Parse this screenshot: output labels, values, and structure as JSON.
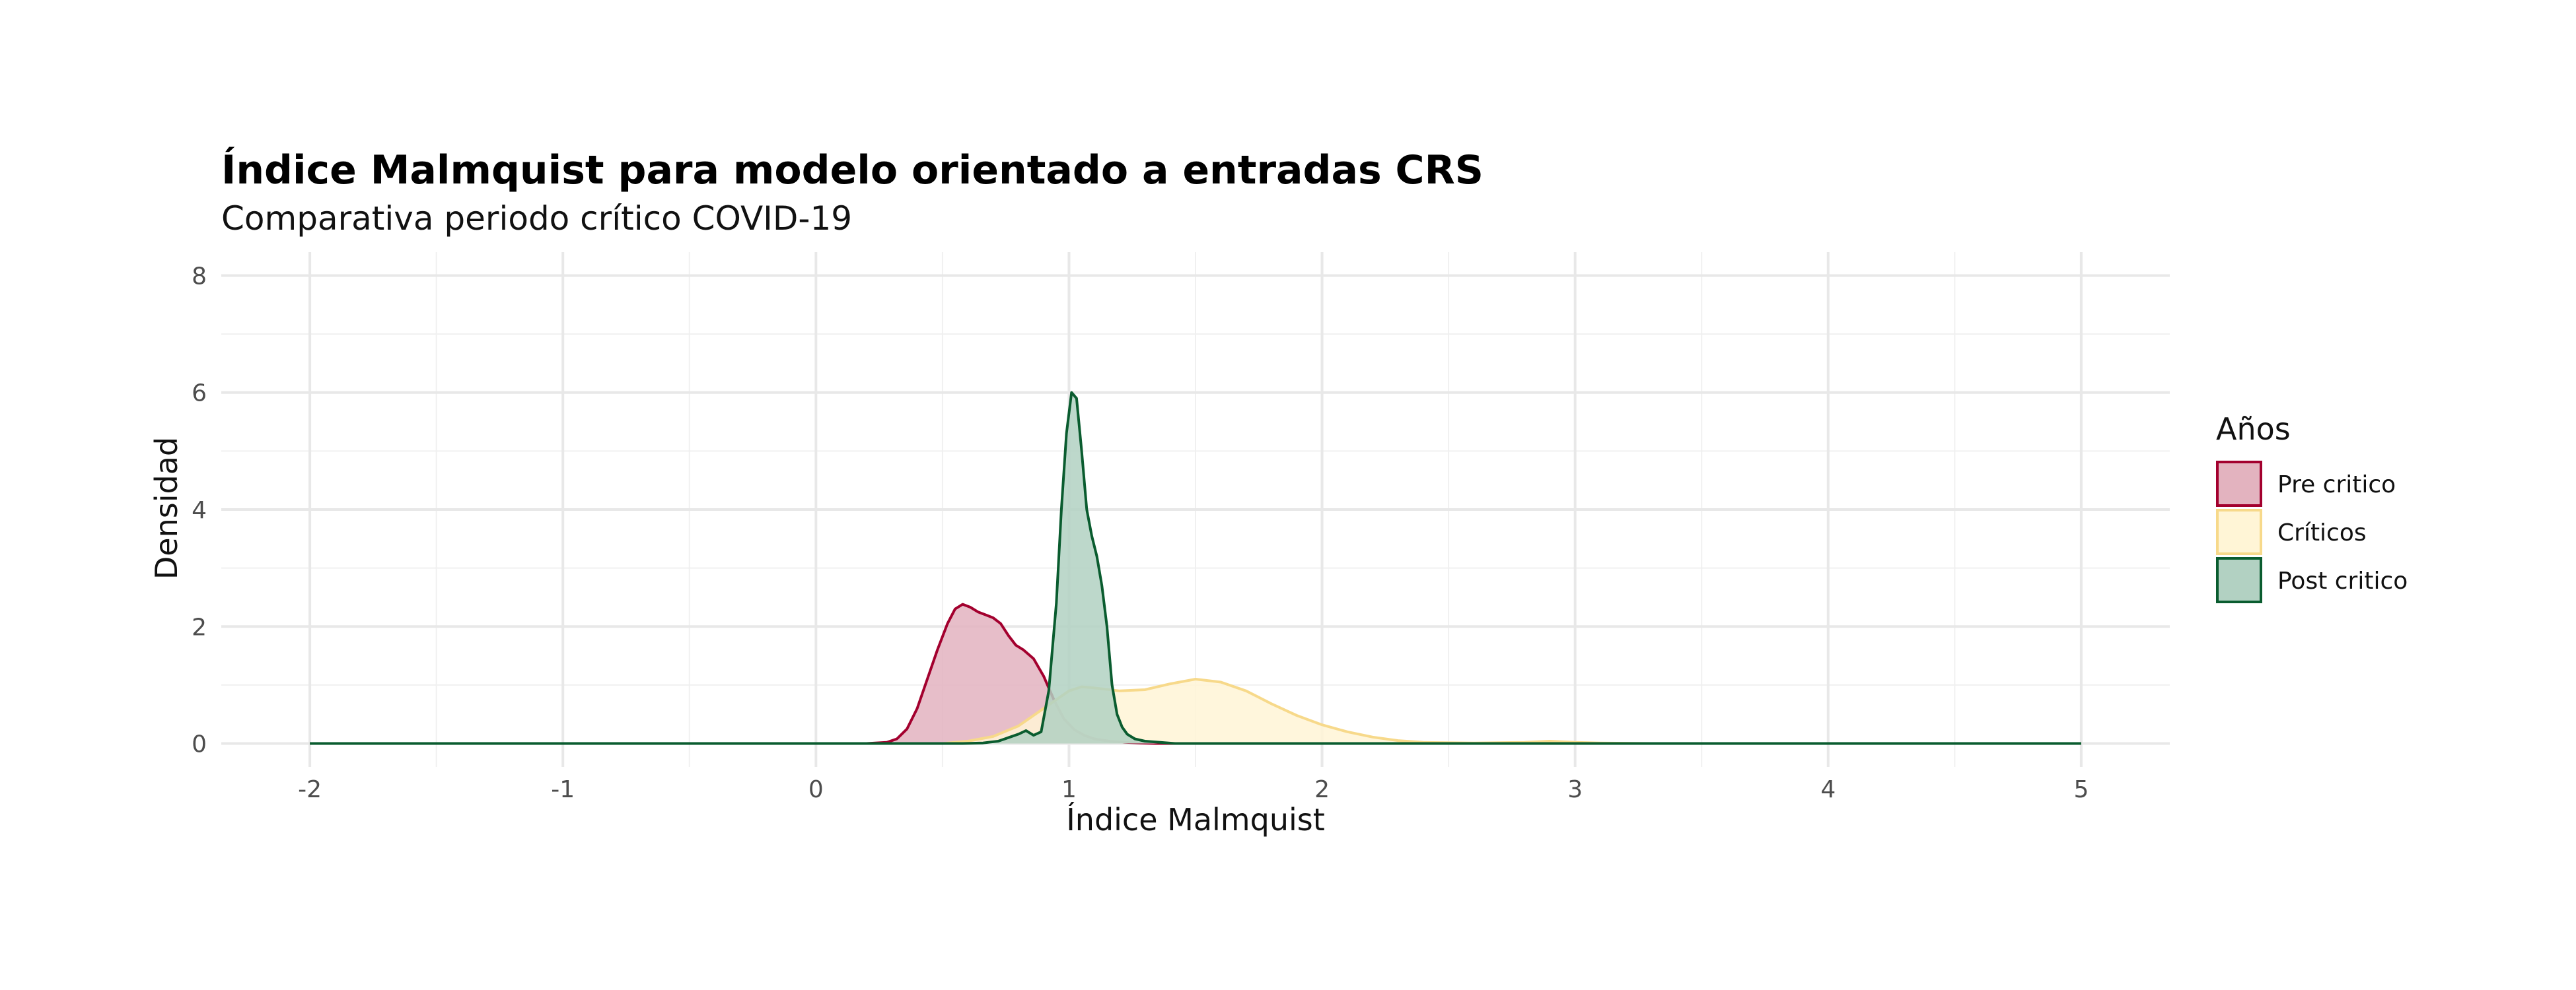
{
  "chart_data": {
    "type": "area",
    "title": "Índice Malmquist para modelo orientado a entradas CRS",
    "subtitle": "Comparativa periodo crítico COVID-19",
    "xlabel": "Índice Malmquist",
    "ylabel": "Densidad",
    "xlim": [
      -2.35,
      5.35
    ],
    "ylim": [
      -0.4,
      8.4
    ],
    "x_ticks": [
      "-2",
      "-1",
      "0",
      "1",
      "2",
      "3",
      "4",
      "5"
    ],
    "y_ticks": [
      "0",
      "2",
      "4",
      "6",
      "8"
    ],
    "grid": true,
    "legend": {
      "title": "Años",
      "position": "right"
    },
    "series": [
      {
        "name": "Pre critico",
        "fill": "#e3b3bf",
        "stroke": "#a3002e",
        "x": [
          -2,
          0.2,
          0.28,
          0.32,
          0.36,
          0.4,
          0.44,
          0.48,
          0.52,
          0.55,
          0.58,
          0.61,
          0.64,
          0.67,
          0.7,
          0.73,
          0.76,
          0.79,
          0.82,
          0.86,
          0.9,
          0.94,
          0.98,
          1.02,
          1.06,
          1.1,
          1.16,
          1.22,
          1.28,
          1.34,
          5
        ],
        "y": [
          0,
          0,
          0.02,
          0.08,
          0.25,
          0.6,
          1.1,
          1.6,
          2.05,
          2.3,
          2.38,
          2.33,
          2.25,
          2.2,
          2.15,
          2.05,
          1.85,
          1.68,
          1.6,
          1.45,
          1.15,
          0.75,
          0.42,
          0.24,
          0.14,
          0.08,
          0.04,
          0.02,
          0.01,
          0,
          0
        ]
      },
      {
        "name": "Críticos",
        "fill": "#fff5d6",
        "stroke": "#f7d98a",
        "x": [
          -2,
          0.5,
          0.6,
          0.7,
          0.8,
          0.9,
          1.0,
          1.05,
          1.1,
          1.2,
          1.3,
          1.4,
          1.5,
          1.6,
          1.7,
          1.8,
          1.9,
          2.0,
          2.1,
          2.2,
          2.3,
          2.4,
          2.6,
          2.8,
          2.9,
          3.0,
          3.1,
          3.3,
          5
        ],
        "y": [
          0,
          0,
          0.04,
          0.12,
          0.3,
          0.6,
          0.9,
          0.97,
          0.95,
          0.9,
          0.92,
          1.02,
          1.1,
          1.05,
          0.9,
          0.68,
          0.48,
          0.32,
          0.2,
          0.11,
          0.05,
          0.02,
          0.01,
          0.02,
          0.04,
          0.02,
          0.01,
          0,
          0
        ]
      },
      {
        "name": "Post critico",
        "fill": "#b2d1c2",
        "stroke": "#0a5c2f",
        "x": [
          -2,
          0.58,
          0.66,
          0.72,
          0.76,
          0.8,
          0.83,
          0.86,
          0.89,
          0.92,
          0.95,
          0.97,
          0.99,
          1.01,
          1.03,
          1.05,
          1.07,
          1.09,
          1.11,
          1.13,
          1.15,
          1.17,
          1.19,
          1.21,
          1.23,
          1.26,
          1.3,
          1.36,
          1.42,
          5
        ],
        "y": [
          0,
          0,
          0.01,
          0.04,
          0.1,
          0.16,
          0.22,
          0.14,
          0.2,
          0.9,
          2.4,
          4.0,
          5.3,
          6.0,
          5.9,
          5.0,
          4.0,
          3.55,
          3.2,
          2.7,
          2.0,
          1.0,
          0.5,
          0.28,
          0.16,
          0.08,
          0.04,
          0.02,
          0,
          0
        ]
      }
    ]
  }
}
